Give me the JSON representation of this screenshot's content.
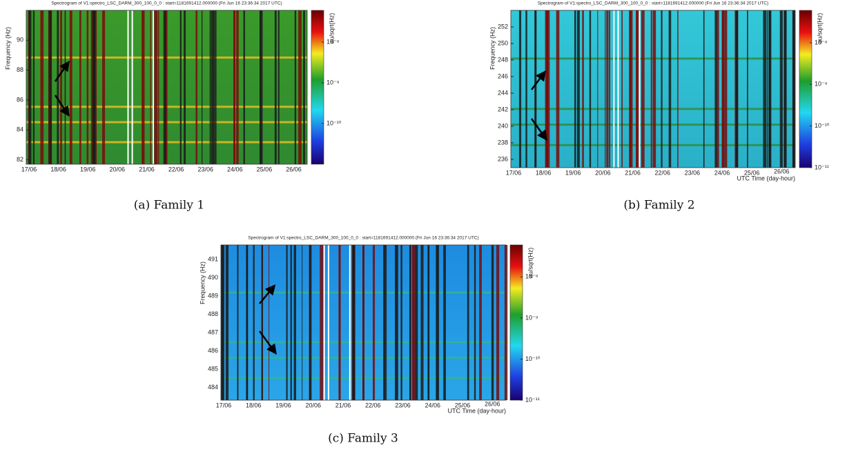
{
  "chart_data": [
    {
      "type": "heatmap",
      "title": "Spectrogram of V1:spectro_LSC_DARM_300_100_0_0 : start=1181691412.000000 (Fri Jun 16 23:36:34 2017 UTC)",
      "ylabel": "Frequency (Hz)",
      "categories": [
        "17/06",
        "18/06",
        "19/06",
        "20/06",
        "21/06",
        "22/06",
        "23/06",
        "24/06",
        "25/06",
        "26/06"
      ],
      "ylim": [
        81.7,
        92
      ],
      "yticks": [
        82,
        84,
        86,
        88,
        90
      ],
      "colorbar": {
        "label": "au/sqrt(Hz)",
        "log": true,
        "lim": [
          1e-11,
          6e-08
        ],
        "ticks": [
          {
            "value": 1e-08,
            "label": "10⁻⁸"
          },
          {
            "value": 1e-09,
            "label": "10⁻⁹"
          },
          {
            "value": 1e-10,
            "label": "10⁻¹⁰"
          }
        ]
      },
      "caption": "(a) Family 1"
    },
    {
      "type": "heatmap",
      "title": "Spectrogram of V1:spectro_LSC_DARM_300_100_0_0 : start=1181691412.000000 (Fri Jun 16 23:36:34 2017 UTC)",
      "ylabel": "Frequency (Hz)",
      "xlabel": "UTC Time (day-hour)",
      "categories": [
        "17/06",
        "18/06",
        "19/06",
        "20/06",
        "21/06",
        "22/06",
        "23/06",
        "24/06",
        "25/06",
        "26/06"
      ],
      "ylim": [
        235,
        254
      ],
      "yticks": [
        236,
        238,
        240,
        242,
        244,
        246,
        248,
        250,
        252
      ],
      "colorbar": {
        "label": "au/sqrt(Hz)",
        "log": true,
        "lim": [
          1e-11,
          6e-08
        ],
        "ticks": [
          {
            "value": 1e-08,
            "label": "10⁻⁸"
          },
          {
            "value": 1e-09,
            "label": "10⁻⁹"
          },
          {
            "value": 1e-10,
            "label": "10⁻¹⁰"
          },
          {
            "value": 1e-11,
            "label": "10⁻¹¹"
          }
        ]
      },
      "caption": "(b) Family 2"
    },
    {
      "type": "heatmap",
      "title": "Spectrogram of V1:spectro_LSC_DARM_300_100_0_0 : start=1181691412.000000 (Fri Jun 16 23:36:34 2017 UTC)",
      "ylabel": "Frequency (Hz)",
      "xlabel": "UTC Time (day-hour)",
      "categories": [
        "17/06",
        "18/06",
        "19/06",
        "20/06",
        "21/06",
        "22/06",
        "23/06",
        "24/06",
        "25/06",
        "26/06"
      ],
      "ylim": [
        483.3,
        491.8
      ],
      "yticks": [
        484,
        485,
        486,
        487,
        488,
        489,
        490,
        491
      ],
      "colorbar": {
        "label": "au/sqrt(Hz)",
        "log": true,
        "lim": [
          1e-11,
          6e-08
        ],
        "ticks": [
          {
            "value": 1e-08,
            "label": "10⁻⁸"
          },
          {
            "value": 1e-09,
            "label": "10⁻⁹"
          },
          {
            "value": 1e-10,
            "label": "10⁻¹⁰"
          },
          {
            "value": 1e-11,
            "label": "10⁻¹¹"
          }
        ]
      },
      "caption": "(c) Family 3"
    }
  ]
}
